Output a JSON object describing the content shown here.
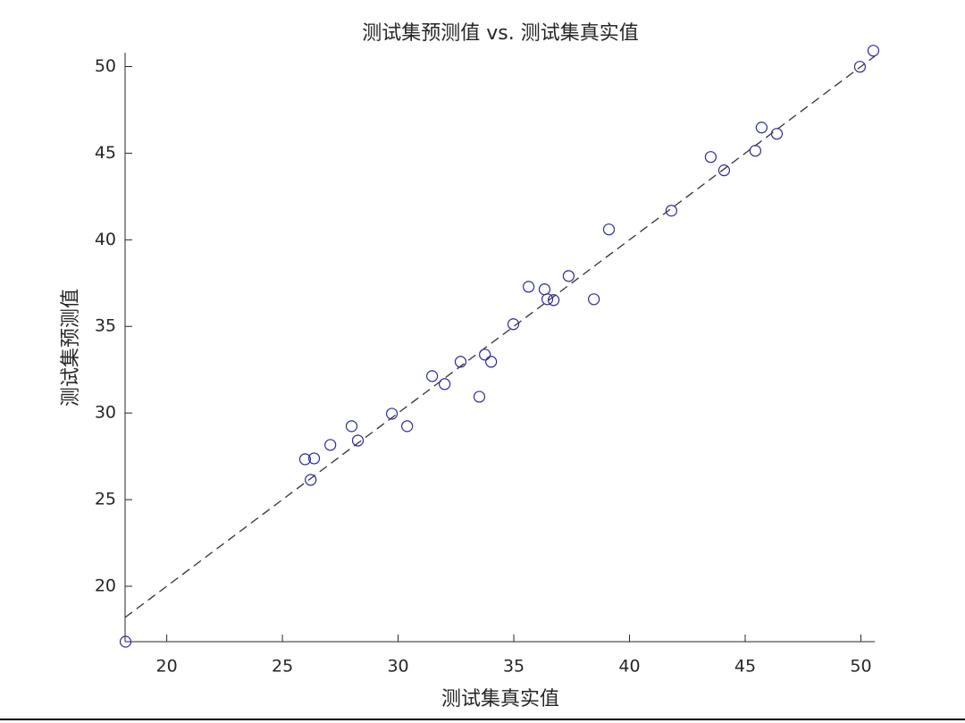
{
  "chart_data": {
    "type": "scatter",
    "title": "测试集预测值 vs. 测试集真实值",
    "x_label": "测试集真实值",
    "y_label": "测试集预测值",
    "series": [
      {
        "color": "#2a2a9a",
        "x": [
          18.22,
          25.98,
          26.37,
          26.22,
          27.07,
          27.99,
          28.26,
          29.73,
          30.39,
          31.47,
          32.01,
          32.7,
          33.51,
          33.75,
          34.02,
          34.98,
          35.64,
          36.33,
          36.45,
          36.72,
          37.37,
          38.46,
          39.11,
          41.81,
          43.51,
          44.09,
          45.44,
          45.71,
          46.37,
          49.96,
          50.54
        ],
        "values": [
          16.8,
          27.33,
          27.38,
          26.14,
          28.16,
          29.24,
          28.41,
          29.96,
          29.24,
          32.13,
          31.67,
          32.96,
          30.94,
          33.37,
          32.96,
          35.13,
          37.29,
          37.14,
          36.57,
          36.52,
          37.91,
          36.57,
          40.6,
          41.68,
          44.78,
          44.01,
          45.14,
          46.48,
          46.12,
          49.99,
          50.92
        ]
      }
    ],
    "xlim": [
      18.2,
      50.6
    ],
    "ylim": [
      16.8,
      50.8
    ],
    "xticks": [
      20,
      25,
      30,
      35,
      40,
      45,
      50
    ],
    "yticks": [
      20,
      25,
      30,
      35,
      40,
      45,
      50
    ]
  }
}
